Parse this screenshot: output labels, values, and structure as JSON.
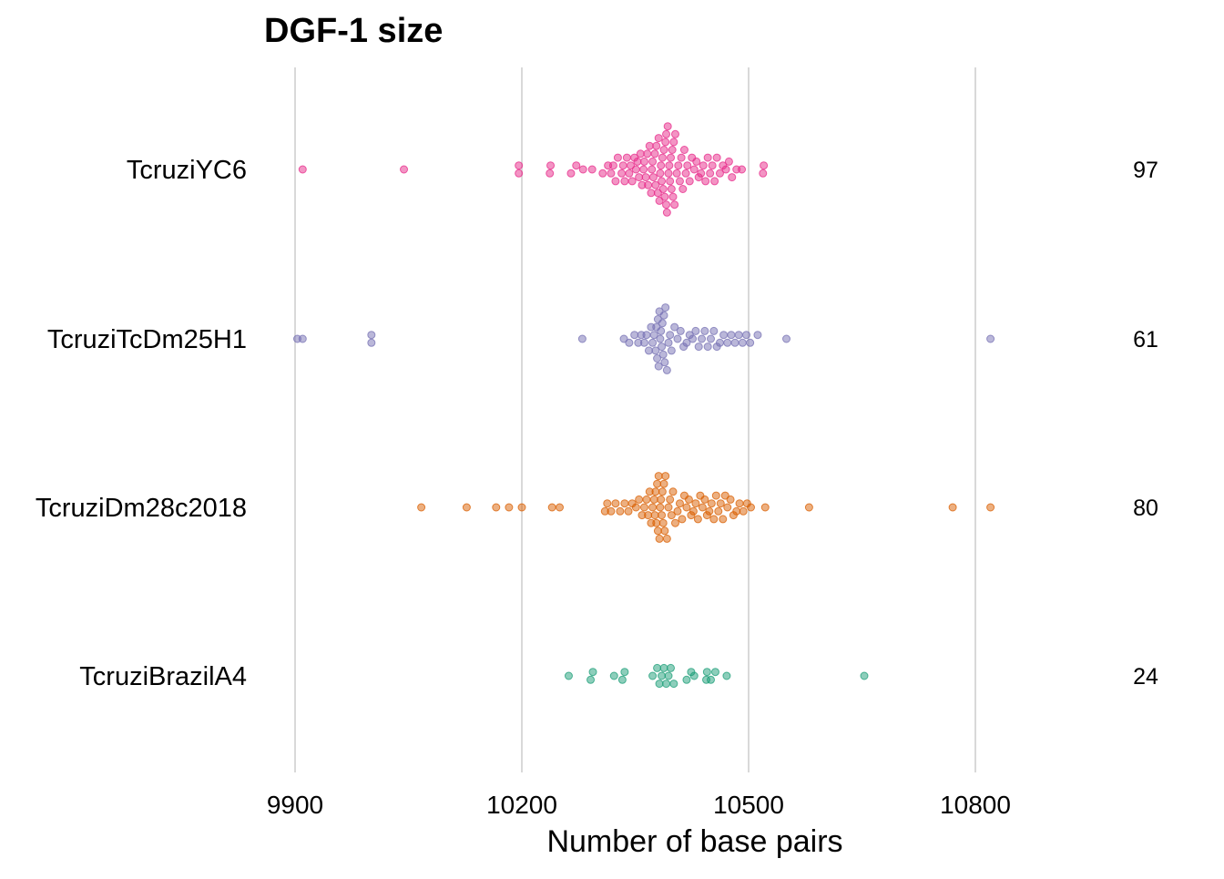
{
  "chart_data": {
    "type": "scatter",
    "subtype": "beeswarm",
    "title": "DGF-1 size",
    "xlabel": "Number of base pairs",
    "ylabel": "",
    "xlim": [
      9900,
      10840
    ],
    "xticks": [
      9900,
      10200,
      10500,
      10800
    ],
    "grid": {
      "vertical": true,
      "horizontal": false
    },
    "legend": "none",
    "categories": [
      "TcruziYC6",
      "TcruziTcDm25H1",
      "TcruziDm28c2018",
      "TcruziBrazilA4"
    ],
    "series": [
      {
        "name": "TcruziYC6",
        "color": "#e7298a",
        "count": "97",
        "values": [
          9910,
          10044,
          10196,
          10196,
          10237,
          10238,
          10265,
          10272,
          10281,
          10293,
          10307,
          10314,
          10318,
          10321,
          10324,
          10327,
          10332,
          10334,
          10336,
          10339,
          10342,
          10344,
          10346,
          10349,
          10351,
          10353,
          10355,
          10357,
          10359,
          10361,
          10362,
          10364,
          10366,
          10367,
          10369,
          10371,
          10372,
          10373,
          10374,
          10376,
          10377,
          10378,
          10380,
          10381,
          10382,
          10383,
          10384,
          10385,
          10386,
          10387,
          10388,
          10389,
          10390,
          10391,
          10391,
          10392,
          10393,
          10394,
          10395,
          10396,
          10397,
          10398,
          10399,
          10400,
          10401,
          10402,
          10403,
          10405,
          10407,
          10409,
          10411,
          10413,
          10415,
          10417,
          10419,
          10422,
          10425,
          10428,
          10431,
          10434,
          10437,
          10440,
          10443,
          10446,
          10449,
          10452,
          10455,
          10458,
          10462,
          10466,
          10470,
          10474,
          10478,
          10484,
          10491,
          10519,
          10520
        ]
      },
      {
        "name": "TcruziTcDm25H1",
        "color": "#7570b3",
        "count": "61",
        "values": [
          9903,
          9910,
          10001,
          10001,
          10280,
          10335,
          10342,
          10349,
          10354,
          10358,
          10362,
          10365,
          10368,
          10371,
          10373,
          10375,
          10377,
          10378,
          10379,
          10380,
          10381,
          10382,
          10383,
          10384,
          10385,
          10386,
          10387,
          10388,
          10389,
          10390,
          10392,
          10394,
          10396,
          10398,
          10402,
          10406,
          10410,
          10414,
          10418,
          10422,
          10426,
          10430,
          10434,
          10438,
          10442,
          10446,
          10450,
          10454,
          10458,
          10462,
          10467,
          10472,
          10477,
          10482,
          10487,
          10492,
          10497,
          10502,
          10512,
          10550,
          10820
        ]
      },
      {
        "name": "TcruziDm28c2018",
        "color": "#d95f02",
        "count": "80",
        "values": [
          10067,
          10127,
          10166,
          10183,
          10200,
          10240,
          10250,
          10310,
          10313,
          10318,
          10324,
          10330,
          10336,
          10341,
          10346,
          10351,
          10355,
          10359,
          10362,
          10365,
          10367,
          10369,
          10371,
          10373,
          10375,
          10376,
          10377,
          10378,
          10379,
          10380,
          10381,
          10382,
          10383,
          10384,
          10385,
          10386,
          10387,
          10388,
          10389,
          10390,
          10392,
          10394,
          10396,
          10398,
          10400,
          10403,
          10406,
          10409,
          10412,
          10415,
          10418,
          10421,
          10424,
          10427,
          10430,
          10433,
          10436,
          10439,
          10442,
          10445,
          10448,
          10451,
          10454,
          10457,
          10460,
          10463,
          10466,
          10469,
          10472,
          10476,
          10480,
          10484,
          10488,
          10493,
          10498,
          10503,
          10522,
          10580,
          10770,
          10820
        ]
      },
      {
        "name": "TcruziBrazilA4",
        "color": "#1b9e77",
        "count": "24",
        "values": [
          10262,
          10291,
          10294,
          10322,
          10333,
          10336,
          10373,
          10379,
          10382,
          10385,
          10388,
          10391,
          10394,
          10397,
          10401,
          10418,
          10424,
          10428,
          10444,
          10445,
          10450,
          10456,
          10471,
          10653
        ]
      }
    ]
  }
}
